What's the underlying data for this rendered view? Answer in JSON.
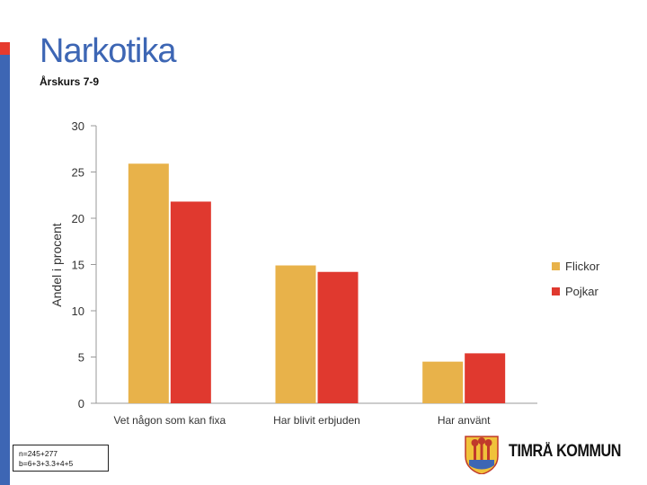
{
  "slide": {
    "title": "Narkotika",
    "subtitle": "Årskurs 7-9",
    "note_lines": [
      "n=245+277",
      "b=6+3+3.3+4+5"
    ],
    "logo_text": "TIMRÅ KOMMUN"
  },
  "colors": {
    "accent_blue": "#3d66b4",
    "accent_red": "#e63a2e",
    "flickor": "#e8b24a",
    "pojkar": "#e0392f"
  },
  "chart_data": {
    "type": "bar",
    "title": "",
    "ylabel": "Andel i procent",
    "xlabel": "",
    "ylim": [
      0,
      30
    ],
    "yticks": [
      0,
      5,
      10,
      15,
      20,
      25,
      30
    ],
    "grid": false,
    "legend_position": "right",
    "categories": [
      "Vet någon som kan fixa",
      "Har blivit erbjuden",
      "Har använt"
    ],
    "series": [
      {
        "name": "Flickor",
        "values": [
          25.9,
          14.9,
          4.5
        ],
        "color": "#e8b24a"
      },
      {
        "name": "Pojkar",
        "values": [
          21.8,
          14.2,
          5.4
        ],
        "color": "#e0392f"
      }
    ]
  }
}
